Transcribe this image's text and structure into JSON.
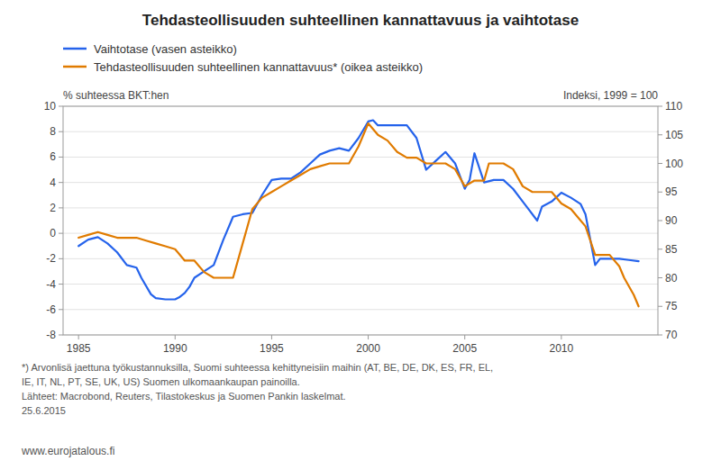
{
  "chart_data": {
    "type": "line",
    "title": "Tehdasteollisuuden suhteellinen kannattavuus ja vaihtotase",
    "ylabel": "% suhteessa BKT:hen",
    "y2label": "Indeksi, 1999 = 100",
    "annotations": [
      "*) Arvonlisä jaettuna työkustannuksilla, Suomi suhteessa kehittyneisiin maihin (AT, BE, DE, DK, ES, FR, EL,",
      "IE, IT, NL, PT, SE, UK, US) Suomen ulkomaankaupan painoilla.",
      "Lähteet: Macrobond, Reuters, Tilastokeskus ja Suomen Pankin laskelmat.",
      "25.6.2015",
      "www.eurojatalous.fi"
    ],
    "xlim": [
      1984.2,
      2015.0
    ],
    "xticks": [
      1985,
      1990,
      1995,
      2000,
      2005,
      2010
    ],
    "ylim": [
      -8,
      10
    ],
    "yticks": [
      -8,
      -6,
      -4,
      -2,
      0,
      2,
      4,
      6,
      8,
      10
    ],
    "y2lim": [
      70,
      110
    ],
    "y2ticks": [
      70,
      75,
      80,
      85,
      90,
      95,
      100,
      105,
      110
    ],
    "grid": true,
    "legend": "top",
    "series": [
      {
        "name": "Vaihtotase (vasen asteikko)",
        "color": "#2563eb",
        "axis": "y",
        "x": [
          1985,
          1985.5,
          1986,
          1986.5,
          1987,
          1987.5,
          1988,
          1988.25,
          1988.75,
          1989,
          1989.5,
          1990,
          1990.25,
          1990.5,
          1990.75,
          1991,
          1991.5,
          1992,
          1992.5,
          1993,
          1993.5,
          1994,
          1994.5,
          1995,
          1995.5,
          1996,
          1996.5,
          1997,
          1997.5,
          1998,
          1998.5,
          1999,
          1999.5,
          2000,
          2000.25,
          2000.5,
          2001,
          2001.5,
          2002,
          2002.5,
          2003,
          2003.5,
          2004,
          2004.5,
          2005,
          2005.25,
          2005.5,
          2006,
          2006.5,
          2007,
          2007.5,
          2008,
          2008.25,
          2008.75,
          2009,
          2009.5,
          2010,
          2010.5,
          2011,
          2011.25,
          2011.75,
          2012,
          2012.5,
          2013,
          2013.5,
          2014
        ],
        "values": [
          -1.0,
          -0.5,
          -0.3,
          -0.8,
          -1.5,
          -2.5,
          -2.7,
          -3.5,
          -4.8,
          -5.1,
          -5.2,
          -5.2,
          -5.0,
          -4.7,
          -4.2,
          -3.5,
          -3.0,
          -2.5,
          -0.5,
          1.3,
          1.5,
          1.6,
          3.0,
          4.2,
          4.3,
          4.3,
          4.8,
          5.5,
          6.2,
          6.5,
          6.7,
          6.5,
          7.5,
          8.8,
          8.9,
          8.5,
          8.5,
          8.5,
          8.5,
          7.5,
          5.0,
          5.7,
          6.4,
          5.5,
          3.5,
          4.2,
          6.3,
          4.0,
          4.2,
          4.2,
          3.5,
          2.5,
          2.0,
          1.0,
          2.1,
          2.5,
          3.2,
          2.8,
          2.3,
          1.5,
          -2.5,
          -2.0,
          -2.0,
          -2.0,
          -2.1,
          -2.2
        ]
      },
      {
        "name": "Tehdasteollisuuden suhteellinen kannattavuus* (oikea asteikko)",
        "color": "#e07b00",
        "axis": "y2",
        "x": [
          1985,
          1985.5,
          1986,
          1986.5,
          1987,
          1987.5,
          1988,
          1988.5,
          1989,
          1989.5,
          1990,
          1990.5,
          1991,
          1991.5,
          1992,
          1992.5,
          1993,
          1993.5,
          1994,
          1994.5,
          1995,
          1995.5,
          1996,
          1996.5,
          1997,
          1997.5,
          1998,
          1998.5,
          1999,
          1999.5,
          2000,
          2000.5,
          2001,
          2001.5,
          2002,
          2002.5,
          2003,
          2003.5,
          2004,
          2004.5,
          2005,
          2005.5,
          2006,
          2006.25,
          2006.5,
          2007,
          2007.5,
          2008,
          2008.5,
          2009,
          2009.5,
          2010,
          2010.5,
          2011,
          2011.25,
          2011.75,
          2012,
          2012.5,
          2013,
          2013.25,
          2013.75,
          2014
        ],
        "values": [
          87,
          87.5,
          88,
          87.5,
          87,
          87,
          87,
          86.5,
          86,
          85.5,
          85,
          83,
          83,
          81,
          80,
          80,
          80,
          86,
          92,
          94,
          95,
          96,
          97,
          98,
          99,
          99.5,
          100,
          100,
          100,
          103,
          107,
          105,
          104,
          102,
          101,
          101,
          100,
          100,
          100,
          99,
          96,
          97,
          97,
          100,
          100,
          100,
          99,
          96,
          95,
          95,
          95,
          93,
          92,
          90,
          89,
          84,
          84,
          84,
          82,
          80,
          77,
          75
        ]
      }
    ]
  }
}
